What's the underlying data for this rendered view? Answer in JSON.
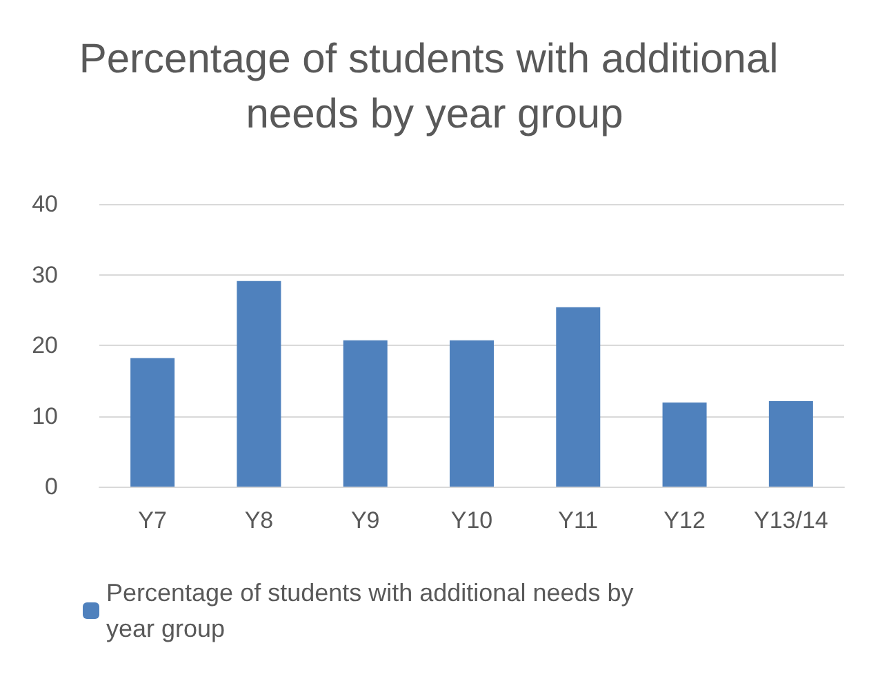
{
  "chart_data": {
    "type": "bar",
    "title": "Percentage of students with additional needs by year group",
    "categories": [
      "Y7",
      "Y8",
      "Y9",
      "Y10",
      "Y11",
      "Y12",
      "Y13/14"
    ],
    "series": [
      {
        "name": "Percentage of students with additional needs by year group",
        "color": "#4f81bd",
        "values": [
          18.2,
          29.1,
          20.7,
          20.7,
          25.4,
          11.9,
          12.1
        ]
      }
    ],
    "ylim": [
      0,
      40
    ],
    "yticks": [
      0,
      10,
      20,
      30,
      40
    ],
    "grid": "y",
    "legend": "bottom"
  }
}
